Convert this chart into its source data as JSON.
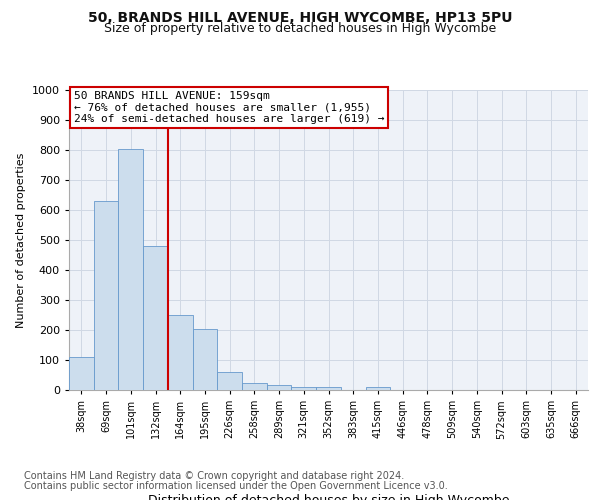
{
  "title1": "50, BRANDS HILL AVENUE, HIGH WYCOMBE, HP13 5PU",
  "title2": "Size of property relative to detached houses in High Wycombe",
  "xlabel": "Distribution of detached houses by size in High Wycombe",
  "ylabel": "Number of detached properties",
  "footer1": "Contains HM Land Registry data © Crown copyright and database right 2024.",
  "footer2": "Contains public sector information licensed under the Open Government Licence v3.0.",
  "annotation_line1": "50 BRANDS HILL AVENUE: 159sqm",
  "annotation_line2": "← 76% of detached houses are smaller (1,955)",
  "annotation_line3": "24% of semi-detached houses are larger (619) →",
  "bar_color": "#ccdded",
  "bar_edge_color": "#6699cc",
  "vline_color": "#cc0000",
  "vline_x": 3.5,
  "categories": [
    "38sqm",
    "69sqm",
    "101sqm",
    "132sqm",
    "164sqm",
    "195sqm",
    "226sqm",
    "258sqm",
    "289sqm",
    "321sqm",
    "352sqm",
    "383sqm",
    "415sqm",
    "446sqm",
    "478sqm",
    "509sqm",
    "540sqm",
    "572sqm",
    "603sqm",
    "635sqm",
    "666sqm"
  ],
  "values": [
    110,
    630,
    805,
    480,
    250,
    205,
    60,
    25,
    18,
    10,
    10,
    0,
    10,
    0,
    0,
    0,
    0,
    0,
    0,
    0,
    0
  ],
  "ylim": [
    0,
    1000
  ],
  "yticks": [
    0,
    100,
    200,
    300,
    400,
    500,
    600,
    700,
    800,
    900,
    1000
  ],
  "grid_color": "#d0d8e4",
  "bg_color": "#eef2f8",
  "fig_bg_color": "#ffffff",
  "title1_fontsize": 10,
  "title2_fontsize": 9,
  "ylabel_fontsize": 8,
  "xlabel_fontsize": 9,
  "annotation_fontsize": 8,
  "footer_fontsize": 7
}
